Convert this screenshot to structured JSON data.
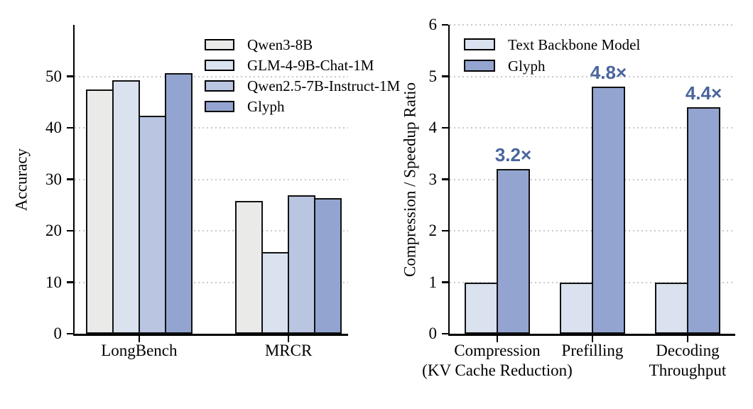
{
  "figure": {
    "background": "#ffffff",
    "text_color": "#000000",
    "bar_border_color": "#111111",
    "gridline_color": "#c9c9c9"
  },
  "chart_data": [
    {
      "type": "bar",
      "title": "",
      "xlabel": "",
      "ylabel": "Accuracy",
      "ylim": [
        0,
        60
      ],
      "yticks": [
        0,
        10,
        20,
        30,
        40,
        50
      ],
      "grid": "horizontal dotted at yticks > 0",
      "legend_position": "upper right inside, frameless",
      "categories": [
        "LongBench",
        "MRCR"
      ],
      "series": [
        {
          "name": "Qwen3-8B",
          "color": "#eaeae9",
          "values": [
            47.4,
            25.8
          ]
        },
        {
          "name": "GLM-4-9B-Chat-1M",
          "color": "#dae1ef",
          "values": [
            49.3,
            15.8
          ]
        },
        {
          "name": "Qwen2.5-7B-Instruct-1M",
          "color": "#b9c5e1",
          "values": [
            42.4,
            26.9
          ]
        },
        {
          "name": "Glyph",
          "color": "#93a4d0",
          "values": [
            50.6,
            26.3
          ]
        }
      ]
    },
    {
      "type": "bar",
      "title": "",
      "xlabel": "",
      "ylabel": "Compression / Speedup Ratio",
      "ylim": [
        0,
        6
      ],
      "yticks": [
        0,
        1,
        2,
        3,
        4,
        5,
        6
      ],
      "grid": "horizontal dotted at yticks > 0",
      "legend_position": "upper left inside, frameless",
      "annotation_color": "#4a659c",
      "categories": [
        "Compression\n(KV Cache Reduction)",
        "Prefilling",
        "Decoding\nThroughput"
      ],
      "series": [
        {
          "name": "Text Backbone Model",
          "color": "#dae1ef",
          "values": [
            1.0,
            1.0,
            1.0
          ]
        },
        {
          "name": "Glyph",
          "color": "#93a4d0",
          "values": [
            3.2,
            4.8,
            4.4
          ],
          "annotations": [
            "3.2×",
            "4.8×",
            "4.4×"
          ]
        }
      ]
    }
  ]
}
